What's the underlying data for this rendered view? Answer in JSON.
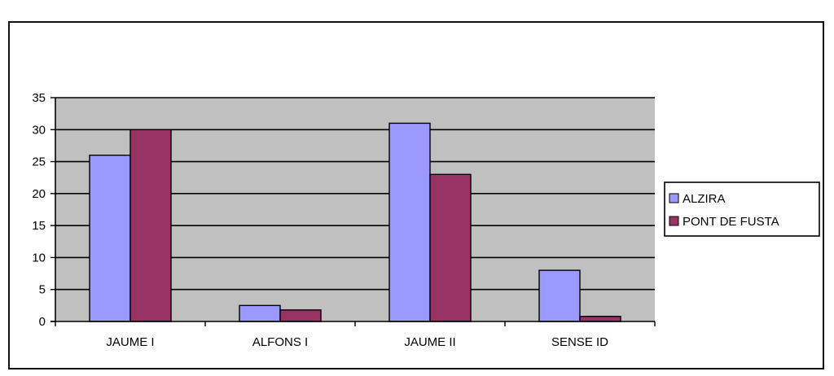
{
  "chart_data": {
    "type": "bar",
    "title": "",
    "xlabel": "",
    "ylabel": "",
    "categories": [
      "JAUME I",
      "ALFONS I",
      "JAUME II",
      "SENSE ID"
    ],
    "series": [
      {
        "name": "ALZIRA",
        "values": [
          26,
          2.5,
          31,
          8
        ],
        "color": "#9999ff"
      },
      {
        "name": "PONT DE FUSTA",
        "values": [
          30,
          1.8,
          23,
          0.8
        ],
        "color": "#993366"
      }
    ],
    "ylim": [
      0,
      35
    ],
    "yticks": [
      0,
      5,
      10,
      15,
      20,
      25,
      30,
      35
    ],
    "grid": true,
    "plot_background": "#c0c0c0",
    "legend_position": "right"
  }
}
